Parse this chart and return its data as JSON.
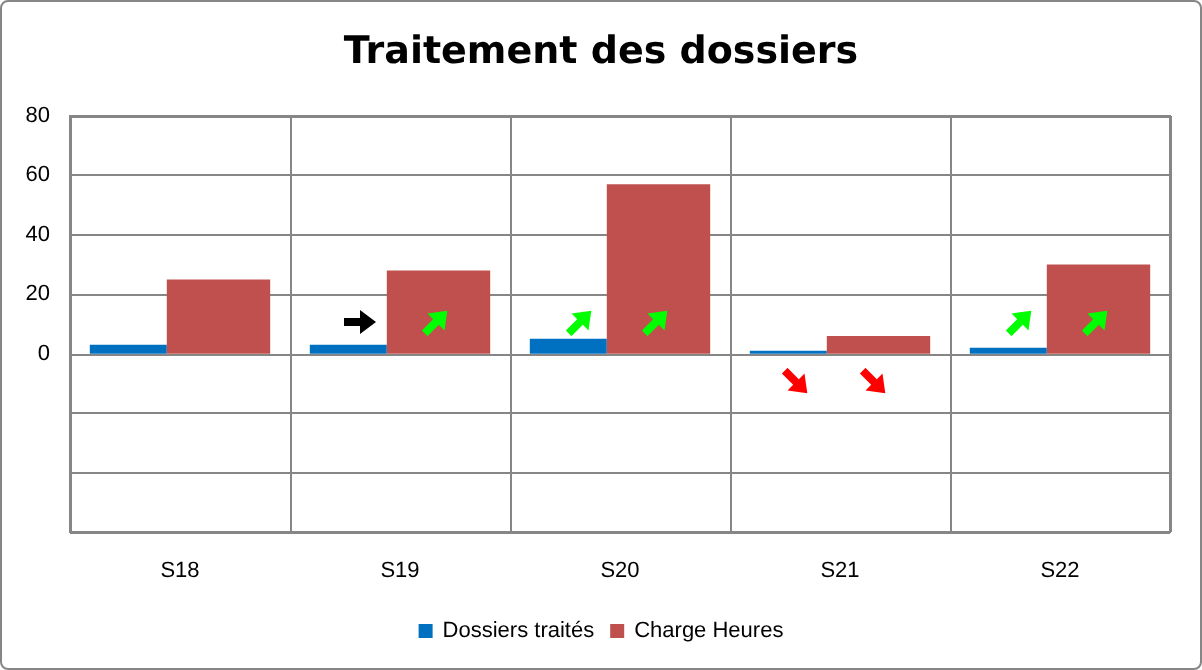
{
  "chart_data": {
    "type": "bar",
    "title": "Traitement des dossiers",
    "categories": [
      "S18",
      "S19",
      "S20",
      "S21",
      "S22"
    ],
    "series": [
      {
        "name": "Dossiers traités",
        "color": "#0070c0",
        "values": [
          3,
          3,
          5,
          1,
          2
        ]
      },
      {
        "name": "Charge Heures",
        "color": "#c0504d",
        "values": [
          25,
          28,
          57,
          6,
          30
        ]
      }
    ],
    "ylim": [
      -60,
      80
    ],
    "yticks": [
      {
        "value": -60,
        "label": null
      },
      {
        "value": -40,
        "label": null
      },
      {
        "value": -20,
        "label": null
      },
      0,
      20,
      40,
      60,
      80
    ],
    "grid": true,
    "legend": "bottom"
  }
}
